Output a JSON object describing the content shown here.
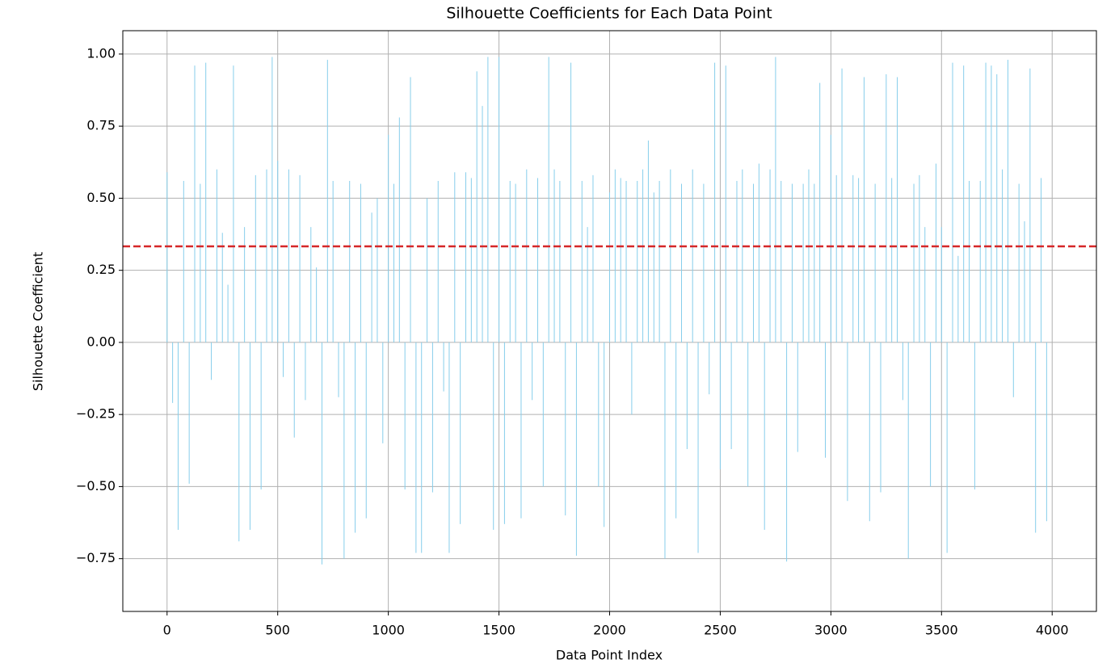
{
  "chart_data": {
    "type": "bar",
    "title": "Silhouette Coefficients for Each Data Point",
    "xlabel": "Data Point Index",
    "ylabel": "Silhouette Coefficient",
    "color": "#87ceeb",
    "x": [
      0,
      25,
      50,
      75,
      100,
      125,
      150,
      175,
      200,
      225,
      250,
      275,
      300,
      325,
      350,
      375,
      400,
      425,
      450,
      475,
      500,
      525,
      550,
      575,
      600,
      625,
      650,
      675,
      700,
      725,
      750,
      775,
      800,
      825,
      850,
      875,
      900,
      925,
      950,
      975,
      1000,
      1025,
      1050,
      1075,
      1100,
      1125,
      1150,
      1175,
      1200,
      1225,
      1250,
      1275,
      1300,
      1325,
      1350,
      1375,
      1400,
      1425,
      1450,
      1475,
      1500,
      1525,
      1550,
      1575,
      1600,
      1625,
      1650,
      1675,
      1700,
      1725,
      1750,
      1775,
      1800,
      1825,
      1850,
      1875,
      1900,
      1925,
      1950,
      1975,
      2000,
      2025,
      2050,
      2075,
      2100,
      2125,
      2150,
      2175,
      2200,
      2225,
      2250,
      2275,
      2300,
      2325,
      2350,
      2375,
      2400,
      2425,
      2450,
      2475,
      2500,
      2525,
      2550,
      2575,
      2600,
      2625,
      2650,
      2675,
      2700,
      2725,
      2750,
      2775,
      2800,
      2825,
      2850,
      2875,
      2900,
      2925,
      2950,
      2975,
      3000,
      3025,
      3050,
      3075,
      3100,
      3125,
      3150,
      3175,
      3200,
      3225,
      3250,
      3275,
      3300,
      3325,
      3350,
      3375,
      3400,
      3425,
      3450,
      3475,
      3500,
      3525,
      3550,
      3575,
      3600,
      3625,
      3650,
      3675,
      3700,
      3725,
      3750,
      3775,
      3800,
      3825,
      3850,
      3875,
      3900,
      3925,
      3950,
      3975
    ],
    "values": [
      0.59,
      -0.21,
      -0.65,
      0.56,
      -0.49,
      0.96,
      0.55,
      0.97,
      -0.13,
      0.6,
      0.38,
      0.2,
      0.96,
      -0.69,
      0.4,
      -0.65,
      0.58,
      -0.51,
      0.6,
      0.99,
      0.63,
      -0.12,
      0.6,
      -0.33,
      0.58,
      -0.2,
      0.4,
      0.26,
      -0.77,
      0.98,
      0.56,
      -0.19,
      -0.75,
      0.56,
      -0.66,
      0.55,
      -0.61,
      0.45,
      0.5,
      -0.35,
      0.72,
      0.55,
      0.78,
      -0.51,
      0.92,
      -0.73,
      -0.73,
      0.5,
      -0.52,
      0.56,
      -0.17,
      -0.73,
      0.59,
      -0.63,
      0.59,
      0.57,
      0.94,
      0.82,
      0.99,
      -0.65,
      0.99,
      -0.63,
      0.56,
      0.55,
      -0.61,
      0.6,
      -0.2,
      0.57,
      -0.5,
      0.99,
      0.6,
      0.56,
      -0.6,
      0.97,
      -0.74,
      0.56,
      0.4,
      0.58,
      -0.5,
      -0.64,
      0.52,
      0.6,
      0.57,
      0.56,
      -0.25,
      0.56,
      0.6,
      0.7,
      0.52,
      0.56,
      -0.75,
      0.6,
      -0.61,
      0.55,
      -0.37,
      0.6,
      -0.73,
      0.55,
      -0.18,
      0.97,
      -0.44,
      0.96,
      -0.37,
      0.56,
      0.6,
      -0.5,
      0.55,
      0.62,
      -0.65,
      0.6,
      0.99,
      0.56,
      -0.76,
      0.55,
      -0.38,
      0.55,
      0.6,
      0.55,
      0.9,
      -0.4,
      0.72,
      0.58,
      0.95,
      -0.55,
      0.58,
      0.57,
      0.92,
      -0.62,
      0.55,
      -0.52,
      0.93,
      0.57,
      0.92,
      -0.2,
      -0.75,
      0.55,
      0.58,
      0.4,
      -0.5,
      0.62,
      0.4,
      -0.73,
      0.97,
      0.3,
      0.96,
      0.56,
      -0.51,
      0.56,
      0.97,
      0.96,
      0.93,
      0.6,
      0.98,
      -0.19,
      0.55,
      0.42,
      0.95,
      -0.66,
      0.57,
      -0.62
    ],
    "hline": {
      "value": 0.333,
      "color": "#d62728"
    },
    "xlim": [
      -200,
      4200
    ],
    "xticks": [
      0,
      500,
      1000,
      1500,
      2000,
      2500,
      3000,
      3500,
      4000
    ],
    "ylim": [
      -0.933,
      1.081
    ],
    "yticks": [
      {
        "value": -0.75,
        "label": "−0.75"
      },
      {
        "value": -0.5,
        "label": "−0.50"
      },
      {
        "value": -0.25,
        "label": "−0.25"
      },
      {
        "value": 0,
        "label": "0.00"
      },
      {
        "value": 0.25,
        "label": "0.25"
      },
      {
        "value": 0.5,
        "label": "0.50"
      },
      {
        "value": 0.75,
        "label": "0.75"
      },
      {
        "value": 1,
        "label": "1.00"
      }
    ],
    "grid": true
  }
}
